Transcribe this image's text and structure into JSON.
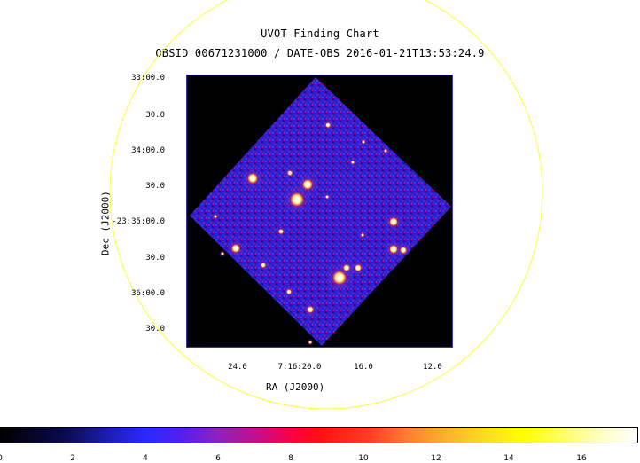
{
  "title": "UVOT Finding Chart",
  "subtitle": "OBSID 00671231000 / DATE-OBS 2016-01-21T13:53:24.9",
  "axes": {
    "xlabel": "RA (J2000)",
    "ylabel": "Dec (J2000)",
    "y_ticks": [
      "33:00.0",
      "30.0",
      "34:00.0",
      "30.0",
      "-23:35:00.0",
      "30.0",
      "36:00.0",
      "30.0"
    ],
    "x_ticks": [
      "24.0",
      "7:16:20.0",
      "16.0",
      "12.0"
    ]
  },
  "colorbar": {
    "ticks": [
      "0",
      "2",
      "4",
      "6",
      "8",
      "10",
      "12",
      "14",
      "16"
    ]
  },
  "colors": {
    "frame": "#3a3aa8",
    "circle": "#ffff33",
    "background": "#000000"
  }
}
